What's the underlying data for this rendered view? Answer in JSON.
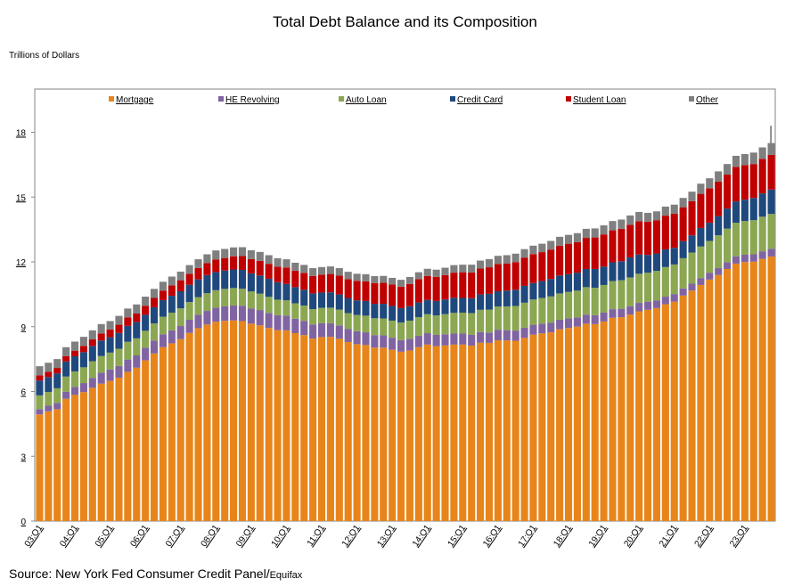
{
  "chart_data": {
    "type": "bar",
    "stacked": true,
    "title": "Total Debt Balance and its Composition",
    "ylabel": "Trillions of Dollars",
    "xlabel": "",
    "ylim": [
      0,
      20
    ],
    "yticks": [
      0,
      3,
      6,
      9,
      12,
      15,
      18
    ],
    "grid": false,
    "legend_placement": "top",
    "x_tick_labels": [
      "03:Q1",
      "04:Q1",
      "05:Q1",
      "06:Q1",
      "07:Q1",
      "08:Q1",
      "09:Q1",
      "10:Q1",
      "11:Q1",
      "12:Q1",
      "13:Q1",
      "14:Q1",
      "15:Q1",
      "16:Q1",
      "17:Q1",
      "18:Q1",
      "19:Q1",
      "20:Q1",
      "21:Q1",
      "22:Q1",
      "23:Q1"
    ],
    "categories_start": "03:Q1",
    "categories_end": "23:Q4",
    "annotation_line_value": 18.3,
    "series": [
      {
        "name": "Mortgage",
        "color": "#E8851A",
        "values": [
          4.94,
          5.08,
          5.18,
          5.66,
          5.84,
          5.97,
          6.17,
          6.36,
          6.49,
          6.64,
          6.91,
          7.1,
          7.44,
          7.76,
          8.05,
          8.23,
          8.42,
          8.71,
          8.93,
          9.1,
          9.23,
          9.27,
          9.29,
          9.26,
          9.14,
          9.06,
          8.94,
          8.84,
          8.83,
          8.7,
          8.61,
          8.45,
          8.52,
          8.53,
          8.44,
          8.29,
          8.19,
          8.15,
          8.03,
          8.03,
          7.93,
          7.84,
          7.9,
          8.05,
          8.17,
          8.1,
          8.13,
          8.17,
          8.17,
          8.12,
          8.26,
          8.25,
          8.37,
          8.36,
          8.35,
          8.48,
          8.63,
          8.69,
          8.74,
          8.88,
          8.94,
          9.0,
          9.14,
          9.12,
          9.24,
          9.41,
          9.44,
          9.56,
          9.71,
          9.78,
          9.86,
          10.04,
          10.16,
          10.44,
          10.67,
          10.93,
          11.18,
          11.39,
          11.67,
          11.92,
          11.99,
          12.01,
          12.14,
          12.25
        ]
      },
      {
        "name": "HE Revolving",
        "color": "#8064A2",
        "values": [
          0.24,
          0.26,
          0.29,
          0.33,
          0.37,
          0.42,
          0.46,
          0.51,
          0.53,
          0.54,
          0.57,
          0.57,
          0.59,
          0.6,
          0.6,
          0.6,
          0.61,
          0.61,
          0.62,
          0.63,
          0.65,
          0.67,
          0.69,
          0.71,
          0.71,
          0.71,
          0.7,
          0.69,
          0.68,
          0.67,
          0.66,
          0.65,
          0.64,
          0.63,
          0.62,
          0.61,
          0.6,
          0.59,
          0.58,
          0.57,
          0.56,
          0.54,
          0.54,
          0.53,
          0.53,
          0.52,
          0.52,
          0.51,
          0.51,
          0.5,
          0.49,
          0.48,
          0.49,
          0.48,
          0.47,
          0.47,
          0.46,
          0.45,
          0.45,
          0.44,
          0.44,
          0.43,
          0.42,
          0.41,
          0.41,
          0.4,
          0.39,
          0.39,
          0.39,
          0.38,
          0.36,
          0.35,
          0.35,
          0.33,
          0.32,
          0.32,
          0.32,
          0.32,
          0.32,
          0.34,
          0.34,
          0.34,
          0.35,
          0.36
        ]
      },
      {
        "name": "Auto Loan",
        "color": "#8BA752",
        "values": [
          0.64,
          0.64,
          0.68,
          0.7,
          0.72,
          0.73,
          0.77,
          0.77,
          0.78,
          0.8,
          0.82,
          0.79,
          0.78,
          0.79,
          0.81,
          0.82,
          0.82,
          0.82,
          0.82,
          0.82,
          0.81,
          0.81,
          0.81,
          0.79,
          0.78,
          0.76,
          0.74,
          0.72,
          0.71,
          0.71,
          0.71,
          0.71,
          0.71,
          0.72,
          0.73,
          0.73,
          0.75,
          0.77,
          0.78,
          0.78,
          0.79,
          0.81,
          0.84,
          0.86,
          0.88,
          0.9,
          0.93,
          0.96,
          0.97,
          1.01,
          1.03,
          1.06,
          1.07,
          1.1,
          1.14,
          1.16,
          1.17,
          1.19,
          1.21,
          1.22,
          1.23,
          1.24,
          1.27,
          1.27,
          1.28,
          1.3,
          1.32,
          1.33,
          1.35,
          1.34,
          1.36,
          1.37,
          1.37,
          1.4,
          1.44,
          1.46,
          1.47,
          1.52,
          1.55,
          1.55,
          1.56,
          1.58,
          1.6,
          1.61
        ]
      },
      {
        "name": "Credit Card",
        "color": "#1F497D",
        "values": [
          0.69,
          0.69,
          0.69,
          0.7,
          0.7,
          0.7,
          0.71,
          0.72,
          0.71,
          0.73,
          0.74,
          0.76,
          0.74,
          0.75,
          0.77,
          0.78,
          0.79,
          0.8,
          0.82,
          0.84,
          0.84,
          0.85,
          0.86,
          0.87,
          0.84,
          0.84,
          0.84,
          0.81,
          0.76,
          0.75,
          0.73,
          0.73,
          0.71,
          0.71,
          0.7,
          0.7,
          0.68,
          0.68,
          0.67,
          0.68,
          0.68,
          0.67,
          0.67,
          0.68,
          0.66,
          0.67,
          0.68,
          0.7,
          0.68,
          0.69,
          0.71,
          0.73,
          0.71,
          0.73,
          0.75,
          0.78,
          0.76,
          0.78,
          0.81,
          0.83,
          0.82,
          0.83,
          0.84,
          0.87,
          0.85,
          0.87,
          0.88,
          0.93,
          0.89,
          0.82,
          0.81,
          0.82,
          0.77,
          0.79,
          0.8,
          0.86,
          0.84,
          0.89,
          0.93,
          0.99,
          0.99,
          1.03,
          1.08,
          1.13
        ]
      },
      {
        "name": "Student Loan",
        "color": "#C00000",
        "values": [
          0.24,
          0.24,
          0.25,
          0.25,
          0.26,
          0.29,
          0.3,
          0.33,
          0.36,
          0.38,
          0.39,
          0.39,
          0.42,
          0.43,
          0.44,
          0.48,
          0.51,
          0.51,
          0.53,
          0.55,
          0.58,
          0.58,
          0.61,
          0.64,
          0.66,
          0.68,
          0.69,
          0.72,
          0.76,
          0.76,
          0.78,
          0.81,
          0.83,
          0.85,
          0.87,
          0.87,
          0.9,
          0.91,
          0.96,
          0.97,
          0.99,
          0.99,
          1.03,
          1.08,
          1.11,
          1.12,
          1.13,
          1.16,
          1.19,
          1.19,
          1.2,
          1.23,
          1.26,
          1.26,
          1.28,
          1.31,
          1.34,
          1.34,
          1.36,
          1.38,
          1.41,
          1.41,
          1.44,
          1.46,
          1.49,
          1.48,
          1.5,
          1.51,
          1.54,
          1.54,
          1.54,
          1.56,
          1.58,
          1.57,
          1.58,
          1.58,
          1.59,
          1.59,
          1.57,
          1.6,
          1.6,
          1.57,
          1.6,
          1.6
        ]
      },
      {
        "name": "Other",
        "color": "#7F7F7F",
        "values": [
          0.42,
          0.42,
          0.41,
          0.41,
          0.42,
          0.42,
          0.42,
          0.43,
          0.39,
          0.41,
          0.41,
          0.42,
          0.42,
          0.42,
          0.41,
          0.41,
          0.4,
          0.4,
          0.4,
          0.41,
          0.42,
          0.42,
          0.41,
          0.41,
          0.41,
          0.41,
          0.4,
          0.39,
          0.38,
          0.37,
          0.37,
          0.36,
          0.35,
          0.35,
          0.35,
          0.34,
          0.33,
          0.33,
          0.32,
          0.32,
          0.31,
          0.32,
          0.32,
          0.32,
          0.33,
          0.33,
          0.34,
          0.35,
          0.35,
          0.36,
          0.37,
          0.38,
          0.38,
          0.38,
          0.39,
          0.39,
          0.39,
          0.39,
          0.4,
          0.41,
          0.41,
          0.42,
          0.42,
          0.42,
          0.42,
          0.43,
          0.43,
          0.43,
          0.43,
          0.41,
          0.41,
          0.42,
          0.42,
          0.43,
          0.44,
          0.47,
          0.47,
          0.48,
          0.49,
          0.51,
          0.51,
          0.53,
          0.53,
          0.55
        ]
      }
    ]
  },
  "source": {
    "main": "Source: New York Fed Consumer Credit Panel/",
    "small": "Equifax"
  }
}
